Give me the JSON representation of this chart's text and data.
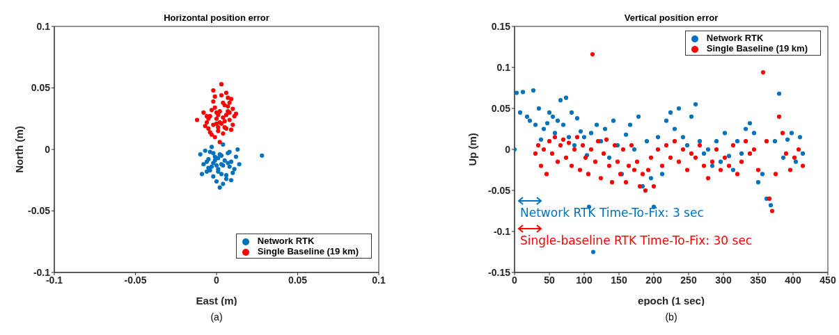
{
  "chart_data": [
    {
      "type": "scatter",
      "title": "Horizontal position error",
      "xlabel": "East (m)",
      "ylabel": "North (m)",
      "xlim": [
        -0.1,
        0.1
      ],
      "xticks": [
        -0.1,
        -0.05,
        0,
        0.05,
        0.1
      ],
      "ylim": [
        -0.1,
        0.1
      ],
      "yticks": [
        -0.1,
        -0.05,
        0,
        0.05,
        0.1
      ],
      "grid": false,
      "legend": "bottom right",
      "marker": "circle",
      "annotations": [
        "(a)"
      ],
      "series": [
        {
          "name": "Network RTK",
          "color": "#0072bd",
          "x": [
            -0.01,
            -0.008,
            -0.006,
            -0.005,
            -0.004,
            -0.003,
            -0.002,
            -0.001,
            0.001,
            0.002,
            0.003,
            0.006,
            0.007,
            0.009,
            0.01,
            0.012,
            0.014,
            -0.007,
            -0.004,
            -0.002,
            0,
            0.004,
            0.006,
            0.008,
            -0.005,
            -0.001,
            0.003,
            0.007,
            0.011,
            -0.003,
            0.001,
            0.005,
            0.009,
            -0.006,
            0,
            0.004,
            0.008,
            0.002,
            0.004,
            0.028,
            -0.009,
            0.013,
            0.001,
            0.003,
            -0.002
          ],
          "values": [
            -0.004,
            -0.012,
            -0.018,
            -0.008,
            -0.002,
            -0.014,
            -0.022,
            -0.006,
            -0.016,
            -0.004,
            -0.02,
            -0.024,
            -0.003,
            -0.01,
            -0.019,
            -0.006,
            -0.012,
            -0.001,
            -0.017,
            -0.011,
            -0.026,
            -0.013,
            -0.021,
            -0.002,
            -0.015,
            -0.009,
            -0.005,
            -0.011,
            -0.016,
            0.002,
            -0.018,
            -0.009,
            -0.025,
            -0.01,
            -0.013,
            0.004,
            -0.014,
            -0.031,
            -0.028,
            -0.005,
            -0.02,
            0.0,
            -0.007,
            -0.012,
            -0.003
          ]
        },
        {
          "name": "Single Baseline (19 km)",
          "color": "#ff0000",
          "x": [
            -0.012,
            -0.008,
            -0.006,
            -0.005,
            -0.004,
            -0.003,
            -0.002,
            -0.001,
            0,
            0.001,
            0.002,
            0.003,
            0.004,
            0.005,
            0.006,
            0.007,
            0.008,
            0.009,
            0.01,
            0.011,
            -0.007,
            -0.004,
            -0.002,
            0,
            0.002,
            0.004,
            0.006,
            0.008,
            -0.005,
            -0.001,
            0.003,
            0.007,
            0.01,
            0.012,
            -0.003,
            0.001,
            0.005,
            0.009,
            -0.006,
            0,
            0.004,
            0.008,
            0.003,
            -0.002,
            0.006,
            0.002,
            0.005,
            -0.001,
            0.001,
            0.007
          ],
          "values": [
            0.024,
            0.03,
            0.022,
            0.017,
            0.027,
            0.012,
            0.02,
            0.034,
            0.025,
            0.015,
            0.031,
            0.021,
            0.038,
            0.018,
            0.028,
            0.035,
            0.024,
            0.041,
            0.033,
            0.027,
            0.019,
            0.014,
            0.039,
            0.03,
            0.022,
            0.026,
            0.017,
            0.03,
            0.025,
            0.01,
            0.044,
            0.042,
            0.02,
            0.029,
            0.032,
            0.028,
            0.036,
            0.016,
            0.027,
            0.021,
            0.013,
            0.038,
            0.053,
            0.048,
            0.046,
            0.006,
            0.023,
            0.043,
            0.018,
            0.031
          ]
        }
      ]
    },
    {
      "type": "scatter",
      "title": "Vertical position error",
      "xlabel": "epoch (1 sec)",
      "ylabel": "Up (m)",
      "xlim": [
        0,
        450
      ],
      "xticks": [
        0,
        50,
        100,
        150,
        200,
        250,
        300,
        350,
        400,
        450
      ],
      "ylim": [
        -0.15,
        0.15
      ],
      "yticks": [
        -0.15,
        -0.1,
        -0.05,
        0,
        0.05,
        0.1,
        0.15
      ],
      "grid": false,
      "legend": "top right",
      "marker": "circle",
      "annotations": [
        "Network RTK Time-To-Fix: 3 sec",
        "Single-baseline RTK Time-To-Fix: 30 sec",
        "(b)"
      ],
      "series": [
        {
          "name": "Network RTK",
          "color": "#0072bd",
          "x": [
            0,
            3,
            8,
            12,
            18,
            22,
            27,
            30,
            35,
            38,
            42,
            47,
            50,
            55,
            58,
            62,
            66,
            70,
            74,
            78,
            82,
            86,
            90,
            95,
            100,
            104,
            107,
            110,
            113,
            118,
            124,
            130,
            136,
            142,
            148,
            154,
            160,
            166,
            172,
            178,
            184,
            190,
            196,
            200,
            206,
            212,
            218,
            224,
            230,
            236,
            242,
            248,
            254,
            260,
            266,
            272,
            278,
            284,
            290,
            296,
            302,
            308,
            314,
            320,
            326,
            332,
            338,
            344,
            350,
            356,
            362,
            368,
            374,
            380,
            386,
            392,
            398,
            404,
            410,
            414
          ],
          "values": [
            0.0,
            0.069,
            0.045,
            0.07,
            0.04,
            0.035,
            0.072,
            0.03,
            0.05,
            0.012,
            0.025,
            0.032,
            0.045,
            0.04,
            0.02,
            0.035,
            0.06,
            0.03,
            0.063,
            0.015,
            0.045,
            0.005,
            0.038,
            0.022,
            0.015,
            -0.007,
            -0.07,
            0.02,
            -0.125,
            0.03,
            0.01,
            0.025,
            -0.01,
            0.035,
            0.005,
            -0.03,
            0.018,
            0.03,
            0.0,
            0.04,
            -0.045,
            0.01,
            -0.035,
            -0.07,
            0.015,
            -0.03,
            0.035,
            0.045,
            0.025,
            0.05,
            0.015,
            0.005,
            0.04,
            0.055,
            0.01,
            -0.005,
            0.0,
            -0.02,
            0.01,
            -0.015,
            0.02,
            -0.008,
            -0.025,
            0.01,
            -0.005,
            0.025,
            0.032,
            0.02,
            -0.04,
            -0.03,
            -0.06,
            -0.068,
            0.01,
            0.068,
            -0.01,
            0.012,
            0.02,
            -0.015,
            0.015,
            -0.005
          ]
        },
        {
          "name": "Single Baseline (19 km)",
          "color": "#ff0000",
          "x": [
            30,
            34,
            38,
            42,
            46,
            50,
            54,
            58,
            62,
            66,
            70,
            74,
            78,
            82,
            86,
            90,
            94,
            98,
            102,
            106,
            110,
            112,
            116,
            120,
            124,
            128,
            132,
            136,
            140,
            144,
            148,
            152,
            156,
            160,
            164,
            168,
            172,
            176,
            180,
            184,
            188,
            192,
            196,
            200,
            206,
            212,
            218,
            224,
            230,
            236,
            242,
            248,
            254,
            260,
            266,
            272,
            278,
            284,
            290,
            296,
            302,
            308,
            314,
            320,
            326,
            332,
            338,
            344,
            350,
            357,
            362,
            366,
            370,
            375,
            380,
            385,
            390,
            396,
            402,
            408,
            414
          ],
          "values": [
            -0.005,
            0.005,
            -0.02,
            0.0,
            -0.03,
            0.01,
            -0.005,
            0.015,
            -0.015,
            0.005,
            0.012,
            -0.01,
            0.008,
            -0.02,
            0.0,
            0.015,
            -0.025,
            0.005,
            -0.01,
            -0.03,
            0.0,
            0.116,
            -0.015,
            0.01,
            -0.035,
            -0.005,
            0.012,
            -0.02,
            -0.04,
            0.005,
            -0.015,
            -0.03,
            0.0,
            -0.04,
            -0.02,
            0.005,
            -0.025,
            -0.015,
            -0.045,
            -0.03,
            -0.05,
            -0.025,
            -0.01,
            -0.045,
            0.0,
            -0.02,
            0.005,
            -0.01,
            0.01,
            -0.015,
            0.0,
            -0.025,
            -0.005,
            -0.01,
            0.005,
            -0.02,
            -0.035,
            -0.015,
            0.0,
            -0.025,
            -0.01,
            -0.02,
            0.005,
            -0.03,
            -0.015,
            0.01,
            -0.005,
            0.0,
            -0.025,
            0.094,
            0.01,
            -0.06,
            -0.075,
            -0.03,
            0.04,
            0.02,
            -0.005,
            -0.025,
            -0.01,
            0.0,
            -0.02
          ]
        }
      ]
    }
  ]
}
